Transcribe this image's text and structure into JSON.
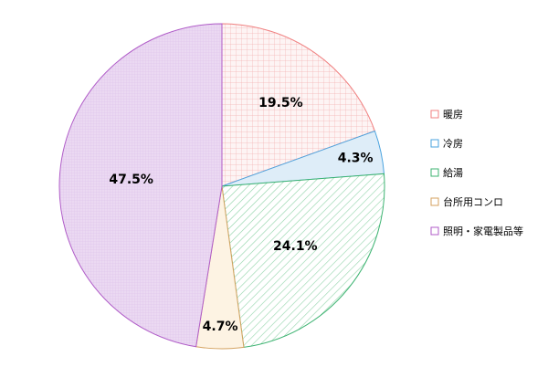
{
  "chart_data": {
    "type": "pie",
    "title": "",
    "legend_position": "right",
    "slices": [
      {
        "name": "暖房",
        "value": 19.5,
        "label": "19.5%",
        "color": "#f08080",
        "fill": "#fdf1f1",
        "pattern": "grid"
      },
      {
        "name": "冷房",
        "value": 4.3,
        "label": "4.3%",
        "color": "#4aa3df",
        "fill": "#deedf8",
        "pattern": "solid"
      },
      {
        "name": "給湯",
        "value": 24.1,
        "label": "24.1%",
        "color": "#3cb371",
        "fill": "#ffffff",
        "pattern": "diagonal"
      },
      {
        "name": "台所用コンロ",
        "value": 4.7,
        "label": "4.7%",
        "color": "#d4a25f",
        "fill": "#fdf3e3",
        "pattern": "solid"
      },
      {
        "name": "照明・家電製品等",
        "value": 47.5,
        "label": "47.5%",
        "color": "#b05cc8",
        "fill": "#ead6f0",
        "pattern": "fine"
      }
    ]
  }
}
